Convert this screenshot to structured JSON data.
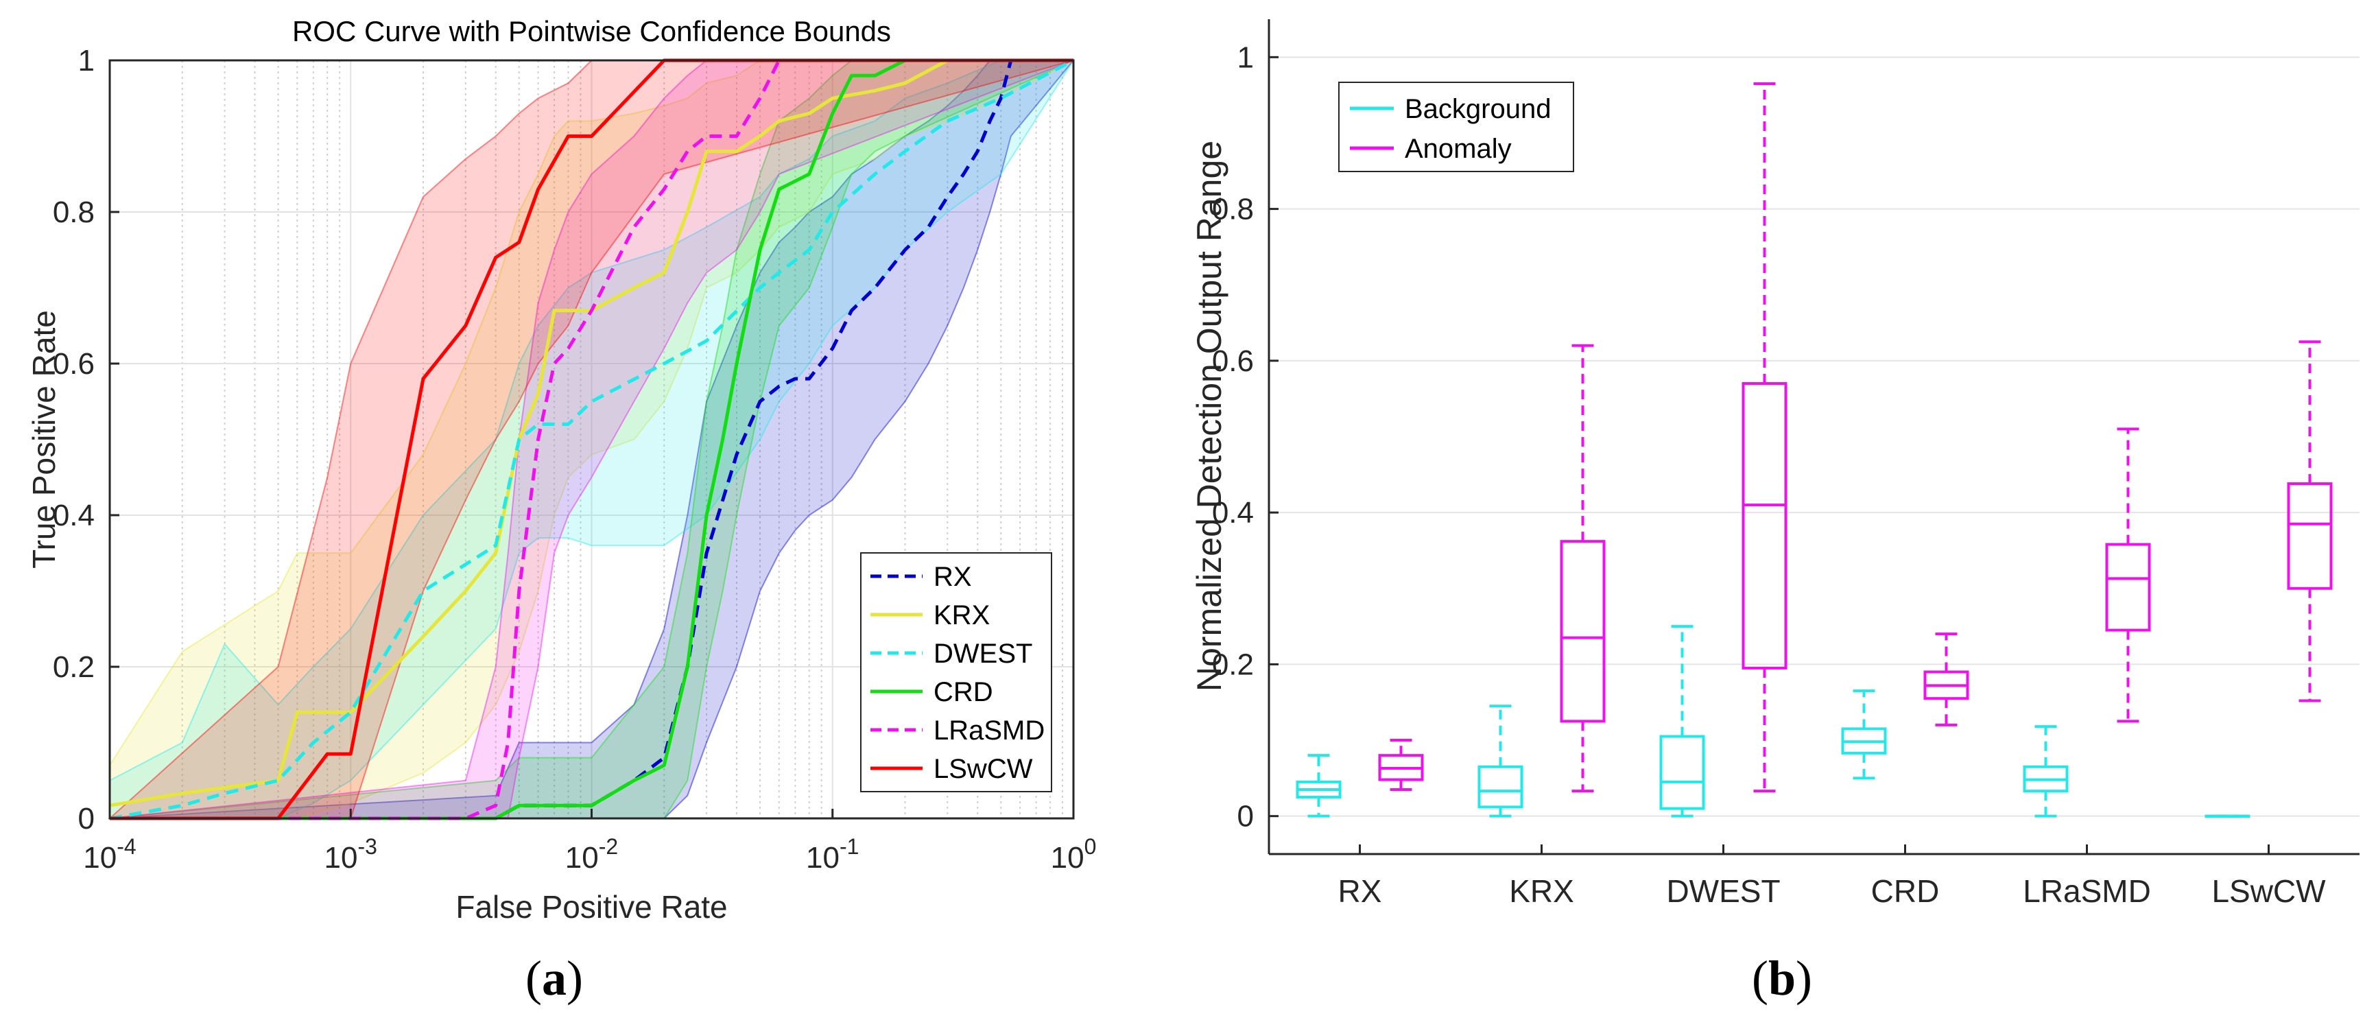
{
  "panel_labels": [
    "a",
    "b"
  ],
  "chart_data": [
    {
      "type": "line",
      "title": "ROC Curve with Pointwise Confidence Bounds",
      "xlabel": "False Positive Rate",
      "ylabel": "True Positive Rate",
      "xscale": "log",
      "xlim": [
        0.0001,
        1
      ],
      "ylim": [
        0,
        1
      ],
      "xticks": [
        {
          "value": 0.0001,
          "base": "10",
          "exp": "-4"
        },
        {
          "value": 0.001,
          "base": "10",
          "exp": "-3"
        },
        {
          "value": 0.01,
          "base": "10",
          "exp": "-2"
        },
        {
          "value": 0.1,
          "base": "10",
          "exp": "-1"
        },
        {
          "value": 1,
          "base": "10",
          "exp": "0"
        }
      ],
      "yticks": [
        "0",
        "0.2",
        "0.4",
        "0.6",
        "0.8",
        "1"
      ],
      "grid": true,
      "legend_position": "bottom-right",
      "series": [
        {
          "name": "RX",
          "color": "#0000cc",
          "dash": true,
          "x": [
            0.0001,
            0.004,
            0.005,
            0.01,
            0.015,
            0.02,
            0.025,
            0.03,
            0.04,
            0.05,
            0.06,
            0.07,
            0.08,
            0.1,
            0.12,
            0.15,
            0.2,
            0.25,
            0.3,
            0.35,
            0.4,
            0.45,
            0.5,
            0.55,
            1
          ],
          "y": [
            0,
            0,
            0.017,
            0.017,
            0.05,
            0.08,
            0.2,
            0.35,
            0.48,
            0.55,
            0.57,
            0.58,
            0.58,
            0.62,
            0.67,
            0.7,
            0.75,
            0.78,
            0.82,
            0.85,
            0.88,
            0.92,
            0.95,
            1,
            1
          ],
          "upper": [
            0,
            0.03,
            0.1,
            0.1,
            0.15,
            0.25,
            0.4,
            0.55,
            0.65,
            0.72,
            0.76,
            0.78,
            0.8,
            0.82,
            0.85,
            0.87,
            0.9,
            0.92,
            0.94,
            0.96,
            0.98,
            1,
            1,
            1,
            1
          ],
          "lower": [
            0,
            0,
            0,
            0,
            0,
            0,
            0.03,
            0.1,
            0.2,
            0.3,
            0.35,
            0.38,
            0.4,
            0.42,
            0.45,
            0.5,
            0.55,
            0.6,
            0.65,
            0.7,
            0.75,
            0.8,
            0.85,
            0.9,
            1
          ]
        },
        {
          "name": "KRX",
          "color": "#e6e63a",
          "dash": false,
          "x": [
            0.0001,
            0.0002,
            0.0005,
            0.0006,
            0.001,
            0.002,
            0.003,
            0.004,
            0.005,
            0.006,
            0.007,
            0.008,
            0.01,
            0.015,
            0.02,
            0.025,
            0.03,
            0.04,
            0.05,
            0.06,
            0.08,
            0.1,
            0.15,
            0.2,
            0.3,
            0.5,
            1
          ],
          "y": [
            0.017,
            0.033,
            0.05,
            0.14,
            0.14,
            0.24,
            0.3,
            0.35,
            0.5,
            0.56,
            0.67,
            0.67,
            0.67,
            0.7,
            0.72,
            0.8,
            0.88,
            0.88,
            0.9,
            0.92,
            0.93,
            0.95,
            0.96,
            0.97,
            1,
            1,
            1
          ],
          "upper": [
            0.07,
            0.22,
            0.3,
            0.35,
            0.35,
            0.48,
            0.6,
            0.7,
            0.8,
            0.85,
            0.9,
            0.92,
            0.92,
            0.93,
            0.94,
            0.95,
            0.97,
            0.98,
            1,
            1,
            1,
            1,
            1,
            1,
            1,
            1,
            1
          ],
          "lower": [
            0,
            0,
            0,
            0,
            0.02,
            0.06,
            0.1,
            0.15,
            0.22,
            0.3,
            0.4,
            0.45,
            0.48,
            0.5,
            0.55,
            0.62,
            0.7,
            0.72,
            0.75,
            0.78,
            0.8,
            0.85,
            0.87,
            0.9,
            0.92,
            0.95,
            1
          ]
        },
        {
          "name": "DWEST",
          "color": "#22e8e8",
          "dash": true,
          "x": [
            0.0001,
            0.0002,
            0.0003,
            0.0005,
            0.0007,
            0.001,
            0.002,
            0.004,
            0.005,
            0.006,
            0.008,
            0.01,
            0.02,
            0.03,
            0.05,
            0.06,
            0.08,
            0.1,
            0.15,
            0.2,
            0.3,
            0.5,
            1
          ],
          "y": [
            0,
            0.017,
            0.033,
            0.05,
            0.1,
            0.14,
            0.3,
            0.36,
            0.5,
            0.52,
            0.52,
            0.55,
            0.6,
            0.63,
            0.7,
            0.72,
            0.75,
            0.8,
            0.85,
            0.88,
            0.92,
            0.95,
            1
          ],
          "upper": [
            0.05,
            0.1,
            0.23,
            0.15,
            0.2,
            0.25,
            0.4,
            0.5,
            0.6,
            0.65,
            0.7,
            0.72,
            0.75,
            0.78,
            0.82,
            0.85,
            0.87,
            0.9,
            0.92,
            0.95,
            0.97,
            1,
            1
          ],
          "lower": [
            0,
            0,
            0,
            0,
            0.02,
            0.05,
            0.15,
            0.25,
            0.35,
            0.37,
            0.37,
            0.36,
            0.36,
            0.4,
            0.5,
            0.55,
            0.6,
            0.65,
            0.7,
            0.75,
            0.8,
            0.85,
            1
          ]
        },
        {
          "name": "CRD",
          "color": "#11dd11",
          "dash": false,
          "x": [
            0.0001,
            0.004,
            0.005,
            0.01,
            0.015,
            0.02,
            0.025,
            0.03,
            0.035,
            0.04,
            0.05,
            0.06,
            0.08,
            0.1,
            0.12,
            0.15,
            0.2,
            1
          ],
          "y": [
            0,
            0,
            0.017,
            0.017,
            0.05,
            0.07,
            0.2,
            0.4,
            0.5,
            0.6,
            0.75,
            0.83,
            0.85,
            0.93,
            0.98,
            0.98,
            1,
            1
          ],
          "upper": [
            0,
            0.05,
            0.08,
            0.08,
            0.15,
            0.2,
            0.35,
            0.55,
            0.65,
            0.75,
            0.85,
            0.92,
            0.95,
            0.98,
            1,
            1,
            1,
            1
          ],
          "lower": [
            0,
            0,
            0,
            0,
            0,
            0,
            0.05,
            0.2,
            0.3,
            0.4,
            0.55,
            0.65,
            0.7,
            0.78,
            0.85,
            0.88,
            0.9,
            1
          ]
        },
        {
          "name": "LRaSMD",
          "color": "#ee11ee",
          "dash": true,
          "x": [
            0.0001,
            0.003,
            0.004,
            0.0045,
            0.005,
            0.006,
            0.007,
            0.008,
            0.01,
            0.015,
            0.02,
            0.025,
            0.03,
            0.04,
            0.05,
            0.06,
            1
          ],
          "y": [
            0,
            0,
            0.017,
            0.1,
            0.3,
            0.5,
            0.6,
            0.62,
            0.67,
            0.78,
            0.83,
            0.88,
            0.9,
            0.9,
            0.95,
            1,
            1
          ],
          "upper": [
            0,
            0.05,
            0.2,
            0.35,
            0.5,
            0.68,
            0.75,
            0.8,
            0.85,
            0.9,
            0.95,
            0.98,
            1,
            1,
            1,
            1,
            1
          ],
          "lower": [
            0,
            0,
            0,
            0,
            0.08,
            0.2,
            0.35,
            0.4,
            0.45,
            0.55,
            0.62,
            0.68,
            0.72,
            0.75,
            0.8,
            0.85,
            1
          ]
        },
        {
          "name": "LSwCW",
          "color": "#ff0000",
          "dash": false,
          "x": [
            0.0001,
            0.0005,
            0.0008,
            0.001,
            0.002,
            0.003,
            0.004,
            0.005,
            0.006,
            0.008,
            0.01,
            0.02,
            1
          ],
          "y": [
            0,
            0,
            0.085,
            0.085,
            0.58,
            0.65,
            0.74,
            0.76,
            0.83,
            0.9,
            0.9,
            1,
            1
          ],
          "upper": [
            0,
            0.2,
            0.45,
            0.6,
            0.82,
            0.87,
            0.9,
            0.93,
            0.95,
            0.97,
            1,
            1,
            1
          ],
          "lower": [
            0,
            0,
            0,
            0,
            0.3,
            0.42,
            0.5,
            0.55,
            0.6,
            0.65,
            0.72,
            0.85,
            1
          ]
        }
      ]
    },
    {
      "type": "box",
      "ylabel": "Normalized Detection Output Range",
      "ylim": [
        -0.05,
        1.05
      ],
      "yticks": [
        "0",
        "0.2",
        "0.4",
        "0.6",
        "0.8",
        "1"
      ],
      "grid": true,
      "legend_position": "top-left",
      "categories": [
        "RX",
        "KRX",
        "DWEST",
        "CRD",
        "LRaSMD",
        "LSwCW"
      ],
      "series": [
        {
          "name": "Background",
          "color": "#22e8e8",
          "boxes": [
            {
              "min": 0.0,
              "q1": 0.025,
              "median": 0.035,
              "q3": 0.045,
              "max": 0.08
            },
            {
              "min": 0.0,
              "q1": 0.012,
              "median": 0.033,
              "q3": 0.065,
              "max": 0.145
            },
            {
              "min": 0.0,
              "q1": 0.01,
              "median": 0.045,
              "q3": 0.105,
              "max": 0.25
            },
            {
              "min": 0.05,
              "q1": 0.083,
              "median": 0.098,
              "q3": 0.115,
              "max": 0.165
            },
            {
              "min": 0.0,
              "q1": 0.033,
              "median": 0.048,
              "q3": 0.065,
              "max": 0.118
            },
            {
              "min": 0.0,
              "q1": 0.0,
              "median": 0.0,
              "q3": 0.0,
              "max": 0.0
            }
          ]
        },
        {
          "name": "Anomaly",
          "color": "#ee11ee",
          "boxes": [
            {
              "min": 0.035,
              "q1": 0.048,
              "median": 0.063,
              "q3": 0.08,
              "max": 0.1
            },
            {
              "min": 0.033,
              "q1": 0.125,
              "median": 0.235,
              "q3": 0.362,
              "max": 0.62
            },
            {
              "min": 0.033,
              "q1": 0.195,
              "median": 0.41,
              "q3": 0.57,
              "max": 0.965
            },
            {
              "min": 0.12,
              "q1": 0.155,
              "median": 0.172,
              "q3": 0.19,
              "max": 0.24
            },
            {
              "min": 0.125,
              "q1": 0.245,
              "median": 0.313,
              "q3": 0.358,
              "max": 0.51
            },
            {
              "min": 0.152,
              "q1": 0.3,
              "median": 0.385,
              "q3": 0.438,
              "max": 0.625
            }
          ]
        }
      ]
    }
  ]
}
